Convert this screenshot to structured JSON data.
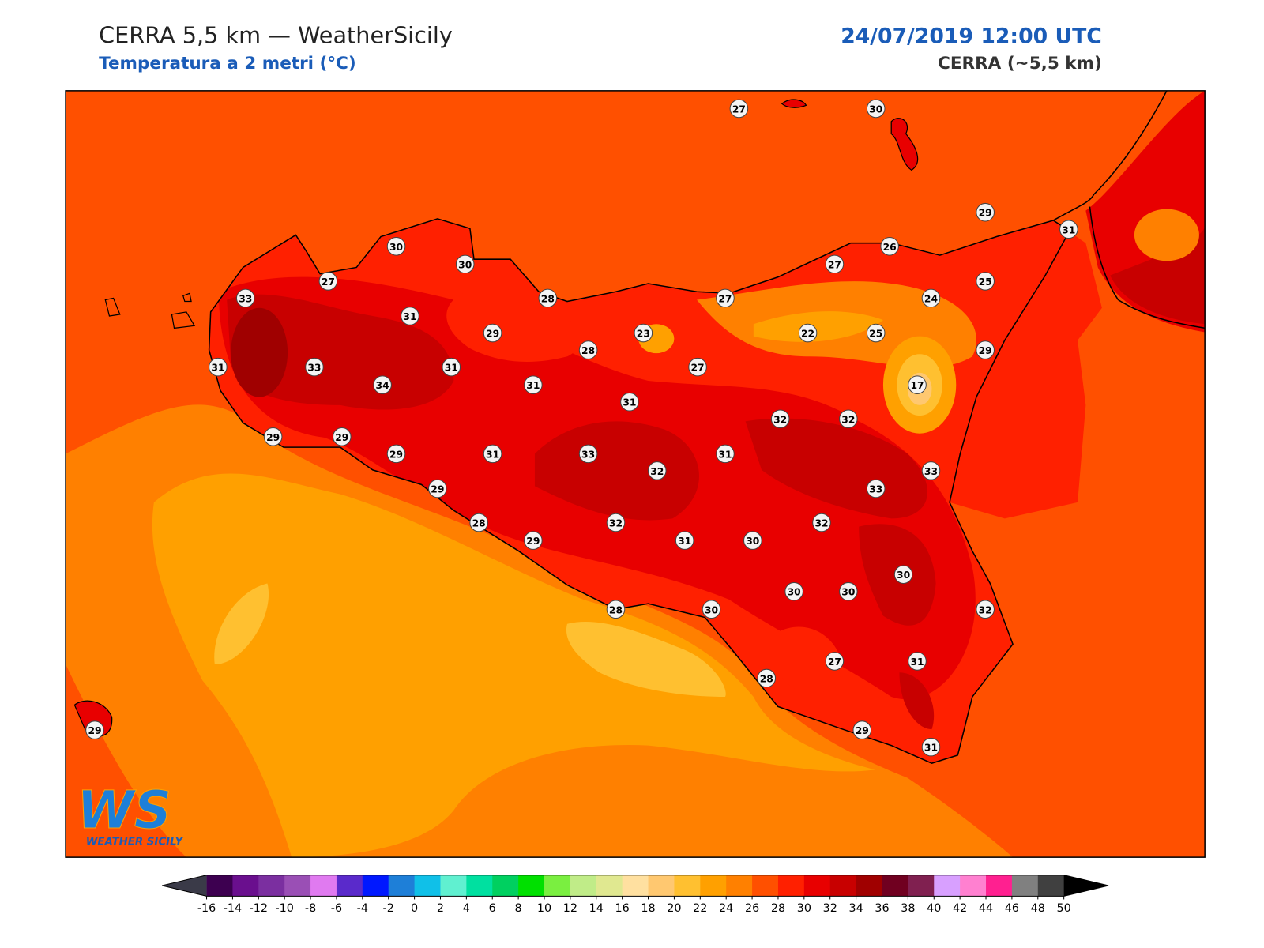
{
  "header": {
    "title": "CERRA 5,5 km — WeatherSicily",
    "subtitle": "Temperatura a 2 metri (°C)",
    "date": "24/07/2019 12:00 UTC",
    "model": "CERRA (~5,5 km)"
  },
  "logo": {
    "mark": "WS",
    "name": "WEATHER SICILY"
  },
  "stations": [
    27,
    30,
    29,
    31,
    30,
    30,
    26,
    27,
    27,
    25,
    33,
    28,
    27,
    24,
    31,
    29,
    23,
    22,
    25,
    28,
    29,
    31,
    33,
    31,
    27,
    34,
    31,
    17,
    31,
    32,
    32,
    29,
    29,
    29,
    31,
    33,
    31,
    32,
    33,
    29,
    33,
    28,
    32,
    32,
    29,
    31,
    30,
    30,
    30,
    30,
    28,
    30,
    32,
    27,
    31,
    28,
    29,
    29,
    31
  ],
  "colorbar": {
    "ticks": [
      -16,
      -14,
      -12,
      -10,
      -8,
      -6,
      -4,
      -2,
      0,
      2,
      4,
      6,
      8,
      10,
      12,
      14,
      16,
      18,
      20,
      22,
      24,
      26,
      28,
      30,
      32,
      34,
      36,
      38,
      40,
      42,
      44,
      46,
      48,
      50
    ],
    "colors": [
      "#3d0050",
      "#6a0f8e",
      "#7b2fa0",
      "#9a4fb5",
      "#e07af0",
      "#5a2acb",
      "#0018ff",
      "#1e7fd8",
      "#10c0e8",
      "#60f0d0",
      "#00e0a0",
      "#00d060",
      "#00e000",
      "#7aef40",
      "#c0ec88",
      "#e0e890",
      "#ffe0a0",
      "#ffc870",
      "#ffc030",
      "#ffa000",
      "#ff8000",
      "#ff5000",
      "#ff2000",
      "#e80000",
      "#c80000",
      "#a00000",
      "#700020",
      "#802050",
      "#d8a0ff",
      "#ff80d0",
      "#ff2090",
      "#808080",
      "#404040"
    ],
    "extend_colors": [
      "#3a3a48",
      "#000000"
    ]
  }
}
